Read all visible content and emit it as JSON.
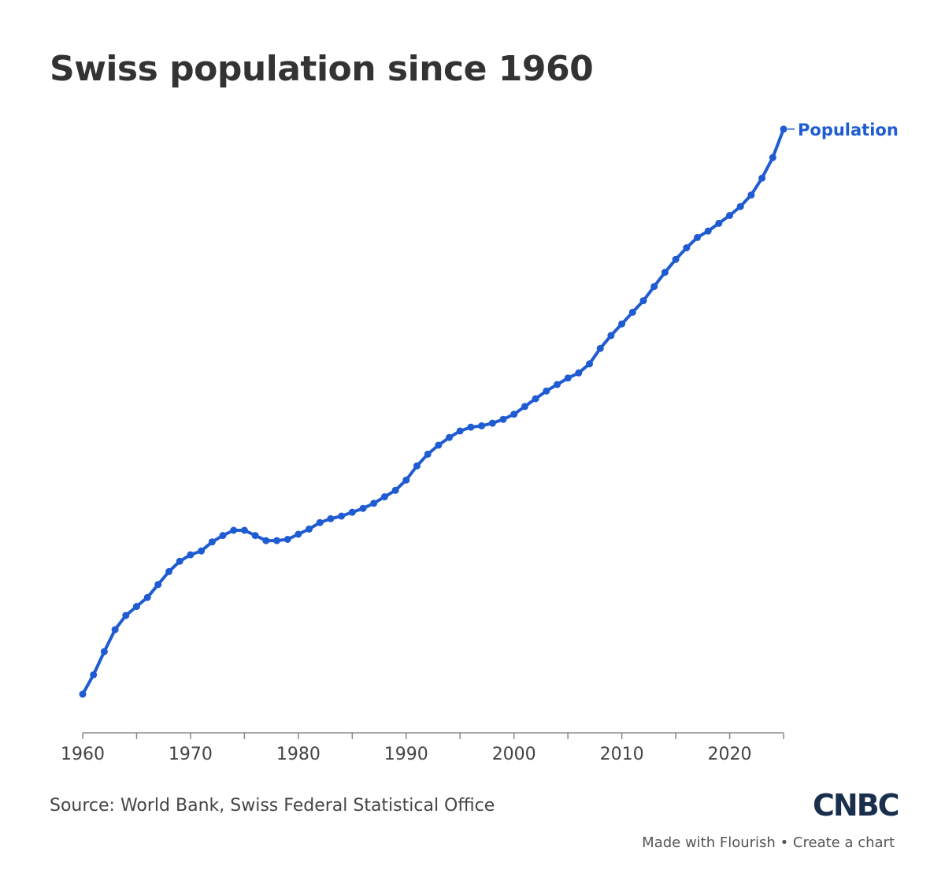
{
  "colors": {
    "line": "#1f5bd1",
    "axis": "#888888",
    "text": "#333333",
    "logo": "#1a2f4d"
  },
  "header": {
    "title": "Swiss population since 1960"
  },
  "footer": {
    "source": "Source: World Bank, Swiss Federal Statistical Office",
    "logo": "CNBC",
    "made_with": "Made with Flourish",
    "separator": "•",
    "create": "Create a chart"
  },
  "chart_data": {
    "type": "line",
    "title": "Swiss population since 1960",
    "xlabel": "",
    "ylabel": "",
    "xlim": [
      1960,
      2025
    ],
    "ylim": [
      5000000,
      10100000
    ],
    "x_ticks": [
      "1960",
      "1970",
      "1980",
      "1990",
      "2000",
      "2010",
      "2020"
    ],
    "grid": false,
    "legend": "line-end label",
    "series": [
      {
        "name": "Population",
        "x": [
          1960,
          1961,
          1962,
          1963,
          1964,
          1965,
          1966,
          1967,
          1968,
          1969,
          1970,
          1971,
          1972,
          1973,
          1974,
          1975,
          1976,
          1977,
          1978,
          1979,
          1980,
          1981,
          1982,
          1983,
          1984,
          1985,
          1986,
          1987,
          1988,
          1989,
          1990,
          1991,
          1992,
          1993,
          1994,
          1995,
          1996,
          1997,
          1998,
          1999,
          2000,
          2001,
          2002,
          2003,
          2004,
          2005,
          2006,
          2007,
          2008,
          2009,
          2010,
          2011,
          2012,
          2013,
          2014,
          2015,
          2016,
          2017,
          2018,
          2019,
          2020,
          2021,
          2022,
          2023,
          2024,
          2025
        ],
        "values": [
          5330000,
          5480000,
          5660000,
          5830000,
          5940000,
          6010000,
          6080000,
          6180000,
          6280000,
          6360000,
          6410000,
          6440000,
          6510000,
          6560000,
          6600000,
          6600000,
          6560000,
          6520000,
          6520000,
          6530000,
          6570000,
          6610000,
          6660000,
          6690000,
          6710000,
          6740000,
          6770000,
          6810000,
          6860000,
          6910000,
          6990000,
          7100000,
          7190000,
          7260000,
          7320000,
          7370000,
          7400000,
          7410000,
          7430000,
          7460000,
          7500000,
          7560000,
          7620000,
          7680000,
          7730000,
          7780000,
          7820000,
          7890000,
          8010000,
          8110000,
          8200000,
          8290000,
          8380000,
          8490000,
          8600000,
          8700000,
          8790000,
          8870000,
          8920000,
          8980000,
          9040000,
          9110000,
          9200000,
          9330000,
          9490000,
          9710000
        ]
      }
    ]
  }
}
